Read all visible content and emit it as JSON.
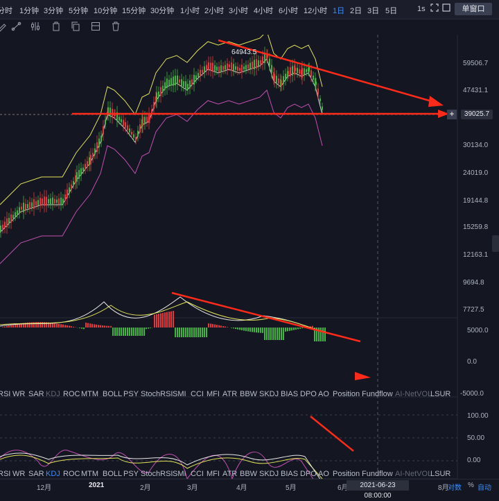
{
  "timeframes": [
    "分时",
    "1分钟",
    "3分钟",
    "5分钟",
    "10分钟",
    "15分钟",
    "30分钟",
    "1小时",
    "2小时",
    "3小时",
    "4小时",
    "6小时",
    "12小时",
    "1日",
    "2日",
    "3日",
    "5日"
  ],
  "active_timeframe_index": 13,
  "top_right": {
    "seconds": "1s",
    "mode_button": "单窗口"
  },
  "tools": [
    "trend-line-icon",
    "indicator-icon",
    "alert-icon",
    "copy-icon",
    "layout-icon",
    "delete-icon"
  ],
  "price_axis": [
    "59506.7",
    "47431.1",
    "39025.7",
    "30134.0",
    "24019.0",
    "19144.8",
    "15259.8",
    "12163.1",
    "9694.8",
    "7727.5"
  ],
  "current_price": "39025.7",
  "peak_annotation": "64943.5",
  "macd_axis": [
    "5000.0",
    "0.0",
    "-5000.0"
  ],
  "kdj_axis": [
    "100.00",
    "50.00",
    "0.00"
  ],
  "indicator_tabs_1": [
    {
      "label": "RSI",
      "state": "normal"
    },
    {
      "label": "WR",
      "state": "normal"
    },
    {
      "label": "SAR",
      "state": "normal"
    },
    {
      "label": "KDJ",
      "state": "dim"
    },
    {
      "label": "ROC",
      "state": "normal"
    },
    {
      "label": "MTM",
      "state": "normal"
    },
    {
      "label": "BOLL",
      "state": "normal"
    },
    {
      "label": "PSY",
      "state": "normal"
    },
    {
      "label": "StochRSI",
      "state": "normal"
    },
    {
      "label": "SMI",
      "state": "normal"
    },
    {
      "label": "CCI",
      "state": "normal"
    },
    {
      "label": "MFI",
      "state": "normal"
    },
    {
      "label": "ATR",
      "state": "normal"
    },
    {
      "label": "BBW",
      "state": "normal"
    },
    {
      "label": "SKDJ",
      "state": "normal"
    },
    {
      "label": "BIAS",
      "state": "normal"
    },
    {
      "label": "DPO",
      "state": "normal"
    },
    {
      "label": "AO",
      "state": "normal"
    },
    {
      "label": "Position",
      "state": "normal"
    },
    {
      "label": "Fundflow",
      "state": "normal"
    },
    {
      "label": "AI-NetVOL",
      "state": "dim"
    },
    {
      "label": "LSUR",
      "state": "normal"
    }
  ],
  "indicator_tabs_2": [
    {
      "label": "RSI",
      "state": "normal"
    },
    {
      "label": "WR",
      "state": "normal"
    },
    {
      "label": "SAR",
      "state": "normal"
    },
    {
      "label": "KDJ",
      "state": "active"
    },
    {
      "label": "ROC",
      "state": "normal"
    },
    {
      "label": "MTM",
      "state": "normal"
    },
    {
      "label": "BOLL",
      "state": "normal"
    },
    {
      "label": "PSY",
      "state": "normal"
    },
    {
      "label": "StochRSI",
      "state": "normal"
    },
    {
      "label": "SMI",
      "state": "normal"
    },
    {
      "label": "CCI",
      "state": "normal"
    },
    {
      "label": "MFI",
      "state": "normal"
    },
    {
      "label": "ATR",
      "state": "normal"
    },
    {
      "label": "BBW",
      "state": "normal"
    },
    {
      "label": "SKDJ",
      "state": "normal"
    },
    {
      "label": "BIAS",
      "state": "normal"
    },
    {
      "label": "DPO",
      "state": "normal"
    },
    {
      "label": "AO",
      "state": "normal"
    },
    {
      "label": "Position",
      "state": "normal"
    },
    {
      "label": "Fundflow",
      "state": "normal"
    },
    {
      "label": "AI-NetVOL",
      "state": "dim"
    },
    {
      "label": "LSUR",
      "state": "normal"
    }
  ],
  "time_axis": [
    "12月",
    "2021",
    "2月",
    "3月",
    "4月",
    "5月",
    "6月",
    "8月"
  ],
  "crosshair_date": "2021-06-23 08:00:00",
  "bottom_right": {
    "log_label": "对数",
    "pct_label": "%",
    "auto_label": "自动"
  },
  "colors": {
    "up": "#3fb63f",
    "down": "#e8373a",
    "accent": "#3a8dff",
    "boll_upper": "#e4e35a",
    "boll_mid": "#d9d9d9",
    "boll_lower": "#c24fb3",
    "arrow": "#ff2a1a"
  }
}
